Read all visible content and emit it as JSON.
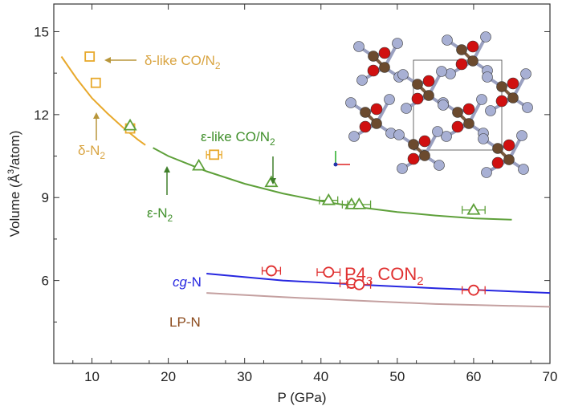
{
  "chart_data": {
    "type": "scatter",
    "xlabel": "P (GPa)",
    "ylabel_parts": [
      "Volume (",
      "Å",
      "3",
      "/atom)"
    ],
    "xlim": [
      5,
      70
    ],
    "ylim": [
      3,
      16
    ],
    "xticks": [
      10,
      20,
      30,
      40,
      50,
      60,
      70
    ],
    "yticks": [
      6,
      9,
      12,
      15
    ],
    "grid": false,
    "colors": {
      "delta": "#E8A92C",
      "epsilon": "#5EA03A",
      "p43": "#E03030",
      "cgN": "#2727E0",
      "lpN": "#C4A0A0",
      "lpN_label": "#8B4A1C",
      "arrow_delta": "#B8963A",
      "arrow_epsilon": "#3F7F2A"
    },
    "series": [
      {
        "key": "delta_like",
        "marker": "square",
        "color_key": "delta",
        "points": [
          {
            "x": 9.7,
            "y": 14.1
          },
          {
            "x": 10.5,
            "y": 13.15
          },
          {
            "x": 15.0,
            "y": 11.5
          },
          {
            "x": 26.0,
            "y": 10.55,
            "xerr": 1.0
          }
        ]
      },
      {
        "key": "epsilon_like",
        "marker": "triangle",
        "color_key": "epsilon",
        "points": [
          {
            "x": 15.0,
            "y": 11.6
          },
          {
            "x": 24.0,
            "y": 10.15
          },
          {
            "x": 33.5,
            "y": 9.55
          },
          {
            "x": 41.0,
            "y": 8.9,
            "xerr": 1.2
          },
          {
            "x": 44.0,
            "y": 8.75,
            "xerr": 1.2
          },
          {
            "x": 45.0,
            "y": 8.75,
            "xerr": 1.5
          },
          {
            "x": 60.0,
            "y": 8.55,
            "xerr": 1.5
          }
        ]
      },
      {
        "key": "p43_con2",
        "marker": "circle",
        "color_key": "p43",
        "points": [
          {
            "x": 33.5,
            "y": 6.35,
            "xerr": 1.2
          },
          {
            "x": 41.0,
            "y": 6.3,
            "xerr": 1.5
          },
          {
            "x": 44.0,
            "y": 5.9,
            "xerr": 1.5
          },
          {
            "x": 45.0,
            "y": 5.85,
            "xerr": 1.5
          },
          {
            "x": 60.0,
            "y": 5.65,
            "xerr": 1.5
          }
        ]
      }
    ],
    "curves": [
      {
        "key": "delta_fit",
        "color_key": "delta",
        "points": [
          [
            6,
            14.1
          ],
          [
            8,
            13.3
          ],
          [
            10,
            12.6
          ],
          [
            12,
            12.05
          ],
          [
            14,
            11.55
          ],
          [
            16,
            11.1
          ],
          [
            17,
            10.9
          ]
        ]
      },
      {
        "key": "epsilon_fit",
        "color_key": "epsilon",
        "points": [
          [
            18,
            10.8
          ],
          [
            20,
            10.5
          ],
          [
            25,
            9.95
          ],
          [
            30,
            9.5
          ],
          [
            35,
            9.15
          ],
          [
            40,
            8.87
          ],
          [
            45,
            8.65
          ],
          [
            50,
            8.48
          ],
          [
            55,
            8.35
          ],
          [
            60,
            8.25
          ],
          [
            65,
            8.2
          ]
        ]
      },
      {
        "key": "cgN_line",
        "color_key": "cgN",
        "points": [
          [
            25,
            6.25
          ],
          [
            35,
            6.0
          ],
          [
            45,
            5.85
          ],
          [
            55,
            5.72
          ],
          [
            70,
            5.55
          ]
        ]
      },
      {
        "key": "lpN_line",
        "color_key": "lpN",
        "points": [
          [
            25,
            5.55
          ],
          [
            35,
            5.4
          ],
          [
            45,
            5.27
          ],
          [
            55,
            5.15
          ],
          [
            70,
            5.05
          ]
        ]
      }
    ],
    "annotations": {
      "delta_like": {
        "text": "δ-like CO/N",
        "sub": "2"
      },
      "delta_n2": {
        "text": "δ-N",
        "sub": "2"
      },
      "eps_like": {
        "text": "ε-like CO/N",
        "sub": "2"
      },
      "eps_n2": {
        "text": "ε-N",
        "sub": "2"
      },
      "cgN": {
        "italic": "cg",
        "rest": "-N"
      },
      "lpN": {
        "text": "LP-N"
      },
      "p43": {
        "pre": "P4",
        "sub1": "3",
        "mid": " CON",
        "sub2": "2"
      }
    },
    "inset": {
      "atom_colors": {
        "N": "#A8B0D4",
        "C": "#6B4A2E",
        "O": "#D01010"
      }
    }
  }
}
